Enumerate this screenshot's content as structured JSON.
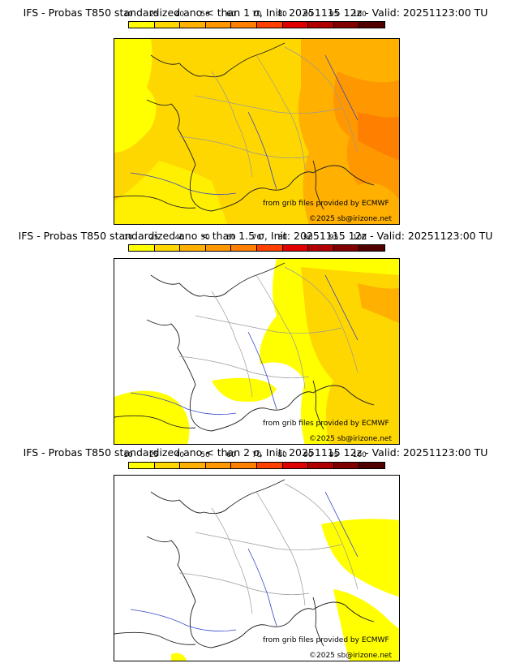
{
  "colorbar": {
    "labels": [
      "10",
      "25",
      "40",
      "50",
      "60",
      "70",
      "80",
      "90",
      "95",
      "100"
    ],
    "colors": [
      "#ffff00",
      "#ffd700",
      "#ffb000",
      "#ff9800",
      "#ff7f00",
      "#ff4000",
      "#e00000",
      "#b00000",
      "#800000",
      "#500000"
    ]
  },
  "panels": [
    {
      "title": "IFS - Probas T850  standardized ano < than 1 σ, Init: 20251115 12z - Valid: 20251123:00 TU",
      "threshold_sigma": 1
    },
    {
      "title": "IFS - Probas T850  standardized ano < than 1.5 σ, Init: 20251115 12z - Valid: 20251123:00 TU",
      "threshold_sigma": 1.5
    },
    {
      "title": "IFS - Probas T850  standardized ano < than 2 σ, Init: 20251115 12z - Valid: 20251123:00 TU",
      "threshold_sigma": 2
    }
  ],
  "credits": {
    "source": "from grib files provided by ECMWF",
    "copyright": "©2025 sb@irizone.net"
  }
}
